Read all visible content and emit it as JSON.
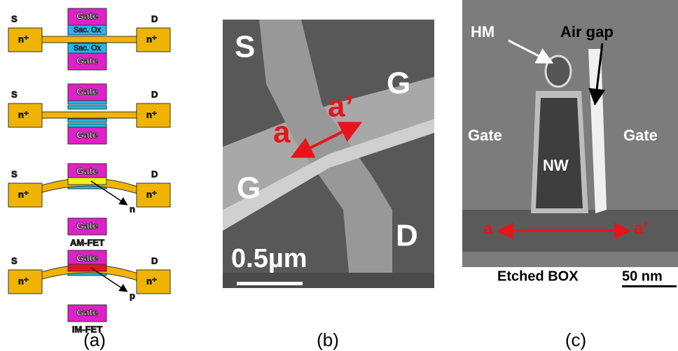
{
  "panel_a": {
    "caption": "(a)",
    "devices": [
      {
        "source": "S",
        "drain": "D",
        "gate_top": "Gate",
        "gate_bottom": "Gate",
        "contact_left": "n⁺",
        "contact_right": "n⁺",
        "oxide_top": "Sac. Ox",
        "oxide_bottom": "Sac. Ox"
      },
      {
        "source": "S",
        "drain": "D",
        "gate_top": "Gate",
        "gate_bottom": "Gate",
        "contact_left": "n⁺",
        "contact_right": "n⁺"
      },
      {
        "source": "S",
        "drain": "D",
        "gate_top": "Gate",
        "gate_bottom": "Gate",
        "contact_left": "n⁺",
        "contact_right": "n⁺",
        "channel": "n",
        "name": "AM-FET"
      },
      {
        "source": "S",
        "drain": "D",
        "gate_top": "Gate",
        "gate_bottom": "Gate",
        "contact_left": "n⁺",
        "contact_right": "n⁺",
        "channel": "p",
        "name": "IM-FET"
      }
    ]
  },
  "panel_b": {
    "caption": "(b)",
    "labels": [
      "S",
      "G",
      "a’",
      "a",
      "G",
      "D"
    ],
    "scale_bar": "0.5µm"
  },
  "panel_c": {
    "caption": "(c)",
    "labels": {
      "hard_mask": "HM",
      "air_gap": "Air gap",
      "gate_left": "Gate",
      "gate_right": "Gate",
      "nanowire": "NW",
      "a": "a",
      "a_prime": "a’"
    },
    "box": "Etched BOX",
    "scale_bar": "50 nm"
  }
}
